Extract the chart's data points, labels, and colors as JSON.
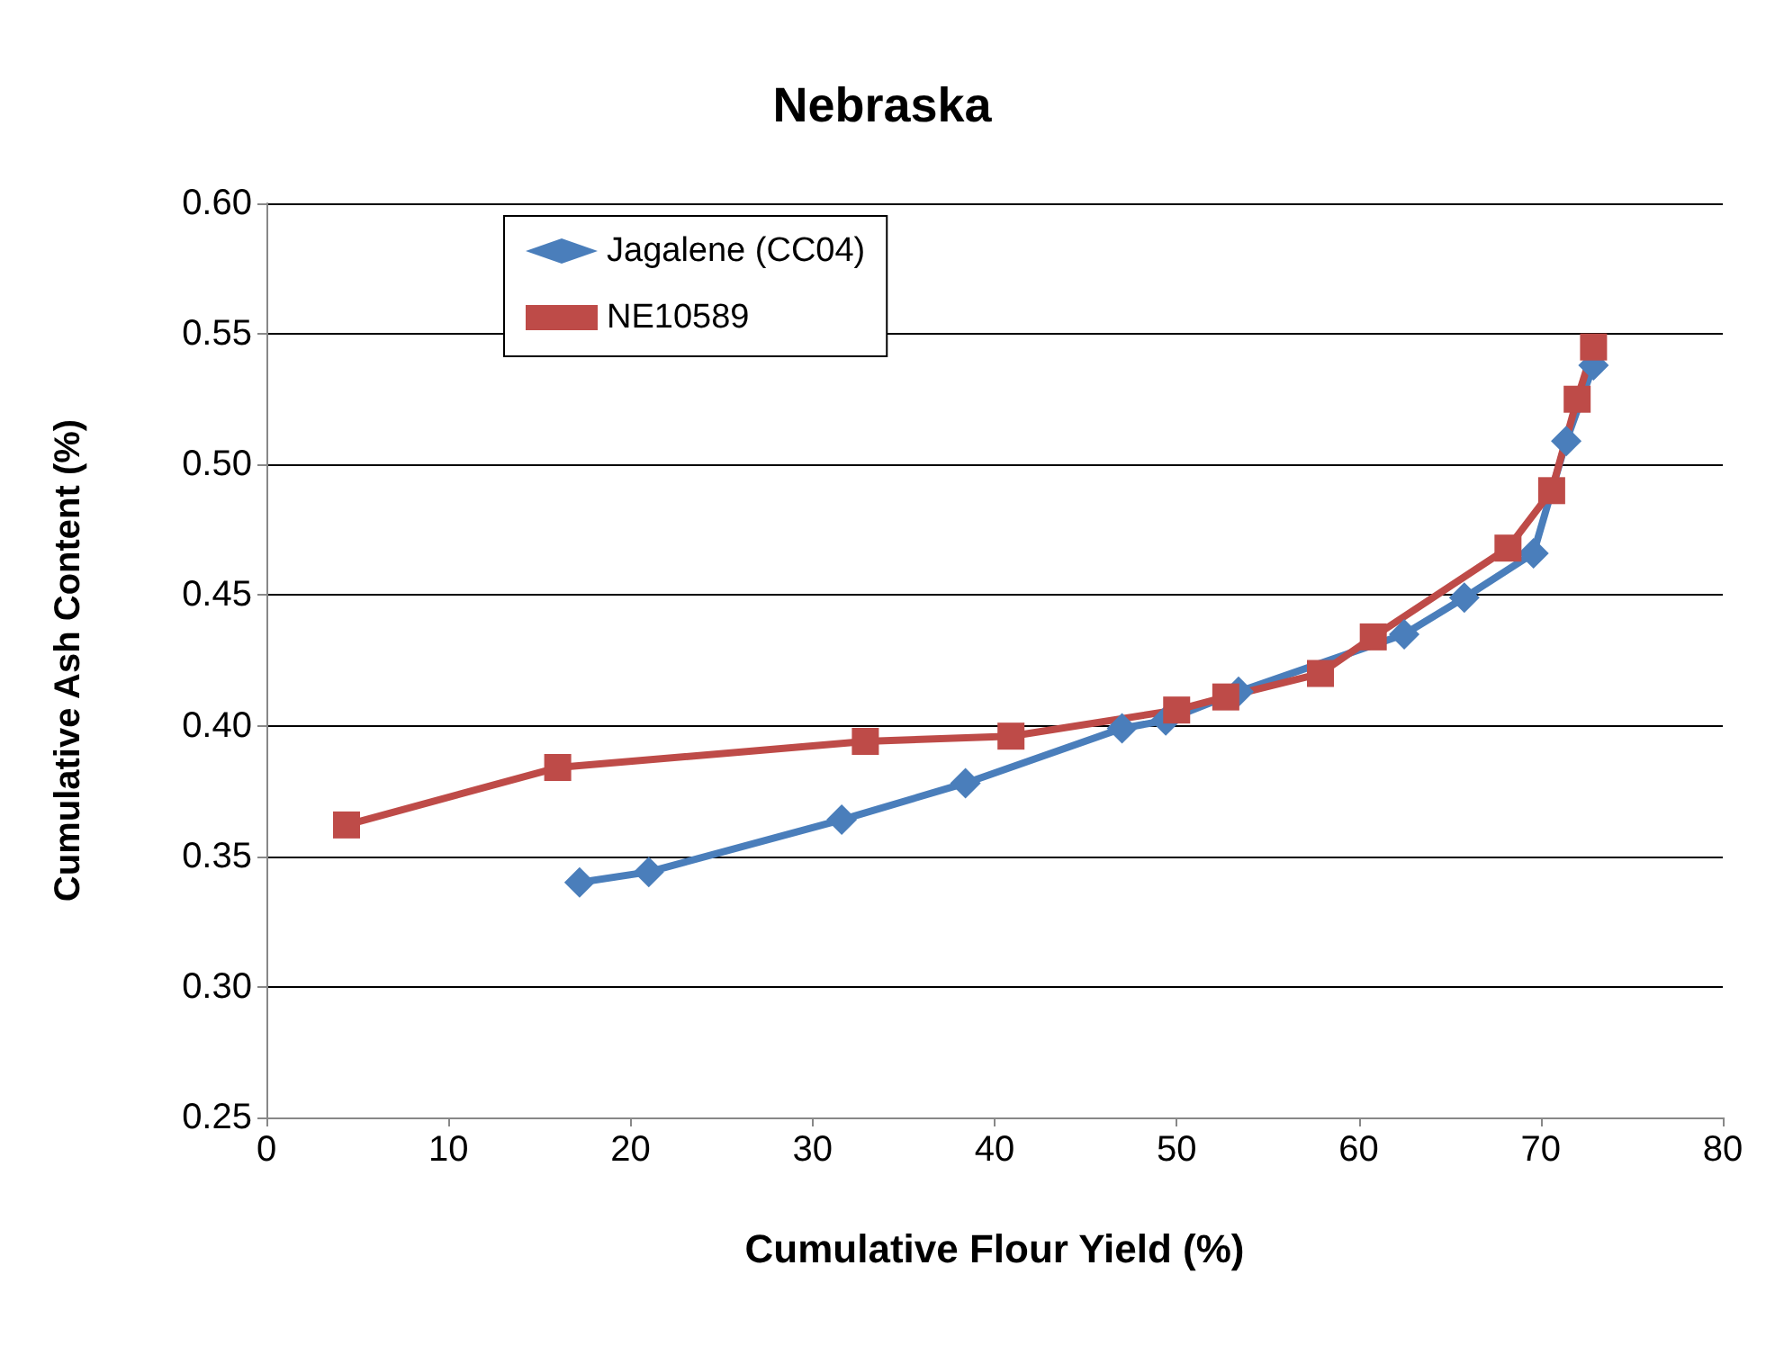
{
  "chart_data": {
    "type": "line",
    "title": "Nebraska",
    "xlabel": "Cumulative Flour Yield (%)",
    "ylabel": "Cumulative Ash Content (%)",
    "xlim": [
      0,
      80
    ],
    "xticks": [
      0,
      10,
      20,
      30,
      40,
      50,
      60,
      70,
      80
    ],
    "ylim": [
      0.25,
      0.6
    ],
    "yticks": [
      0.25,
      {
        "value": 0.3,
        "label": "0.30"
      },
      0.35,
      {
        "value": 0.4,
        "label": "0.40"
      },
      0.45,
      {
        "value": 0.5,
        "label": "0.50"
      },
      0.55,
      {
        "value": 0.6,
        "label": "0.60"
      }
    ],
    "grid": "y",
    "legend": "top left",
    "line_style": "solid",
    "series": [
      {
        "name": "Jagalene (CC04)",
        "color": "#4a7ebb",
        "marker": "diamond",
        "x": [
          17.2,
          21.0,
          31.6,
          38.4,
          47.0,
          49.4,
          53.4,
          62.5,
          65.8,
          69.6,
          71.4,
          72.9
        ],
        "values": [
          0.34,
          0.344,
          0.364,
          0.378,
          0.399,
          0.402,
          0.413,
          0.435,
          0.449,
          0.466,
          0.509,
          0.538
        ]
      },
      {
        "name": "NE10589",
        "color": "#be4b48",
        "marker": "square",
        "x": [
          4.4,
          16.0,
          32.9,
          40.9,
          50.0,
          52.7,
          57.9,
          60.8,
          68.2,
          70.6,
          72.0,
          72.9
        ],
        "values": [
          0.362,
          0.384,
          0.394,
          0.396,
          0.406,
          0.411,
          0.42,
          0.434,
          0.468,
          0.49,
          0.525,
          0.545
        ]
      }
    ]
  }
}
